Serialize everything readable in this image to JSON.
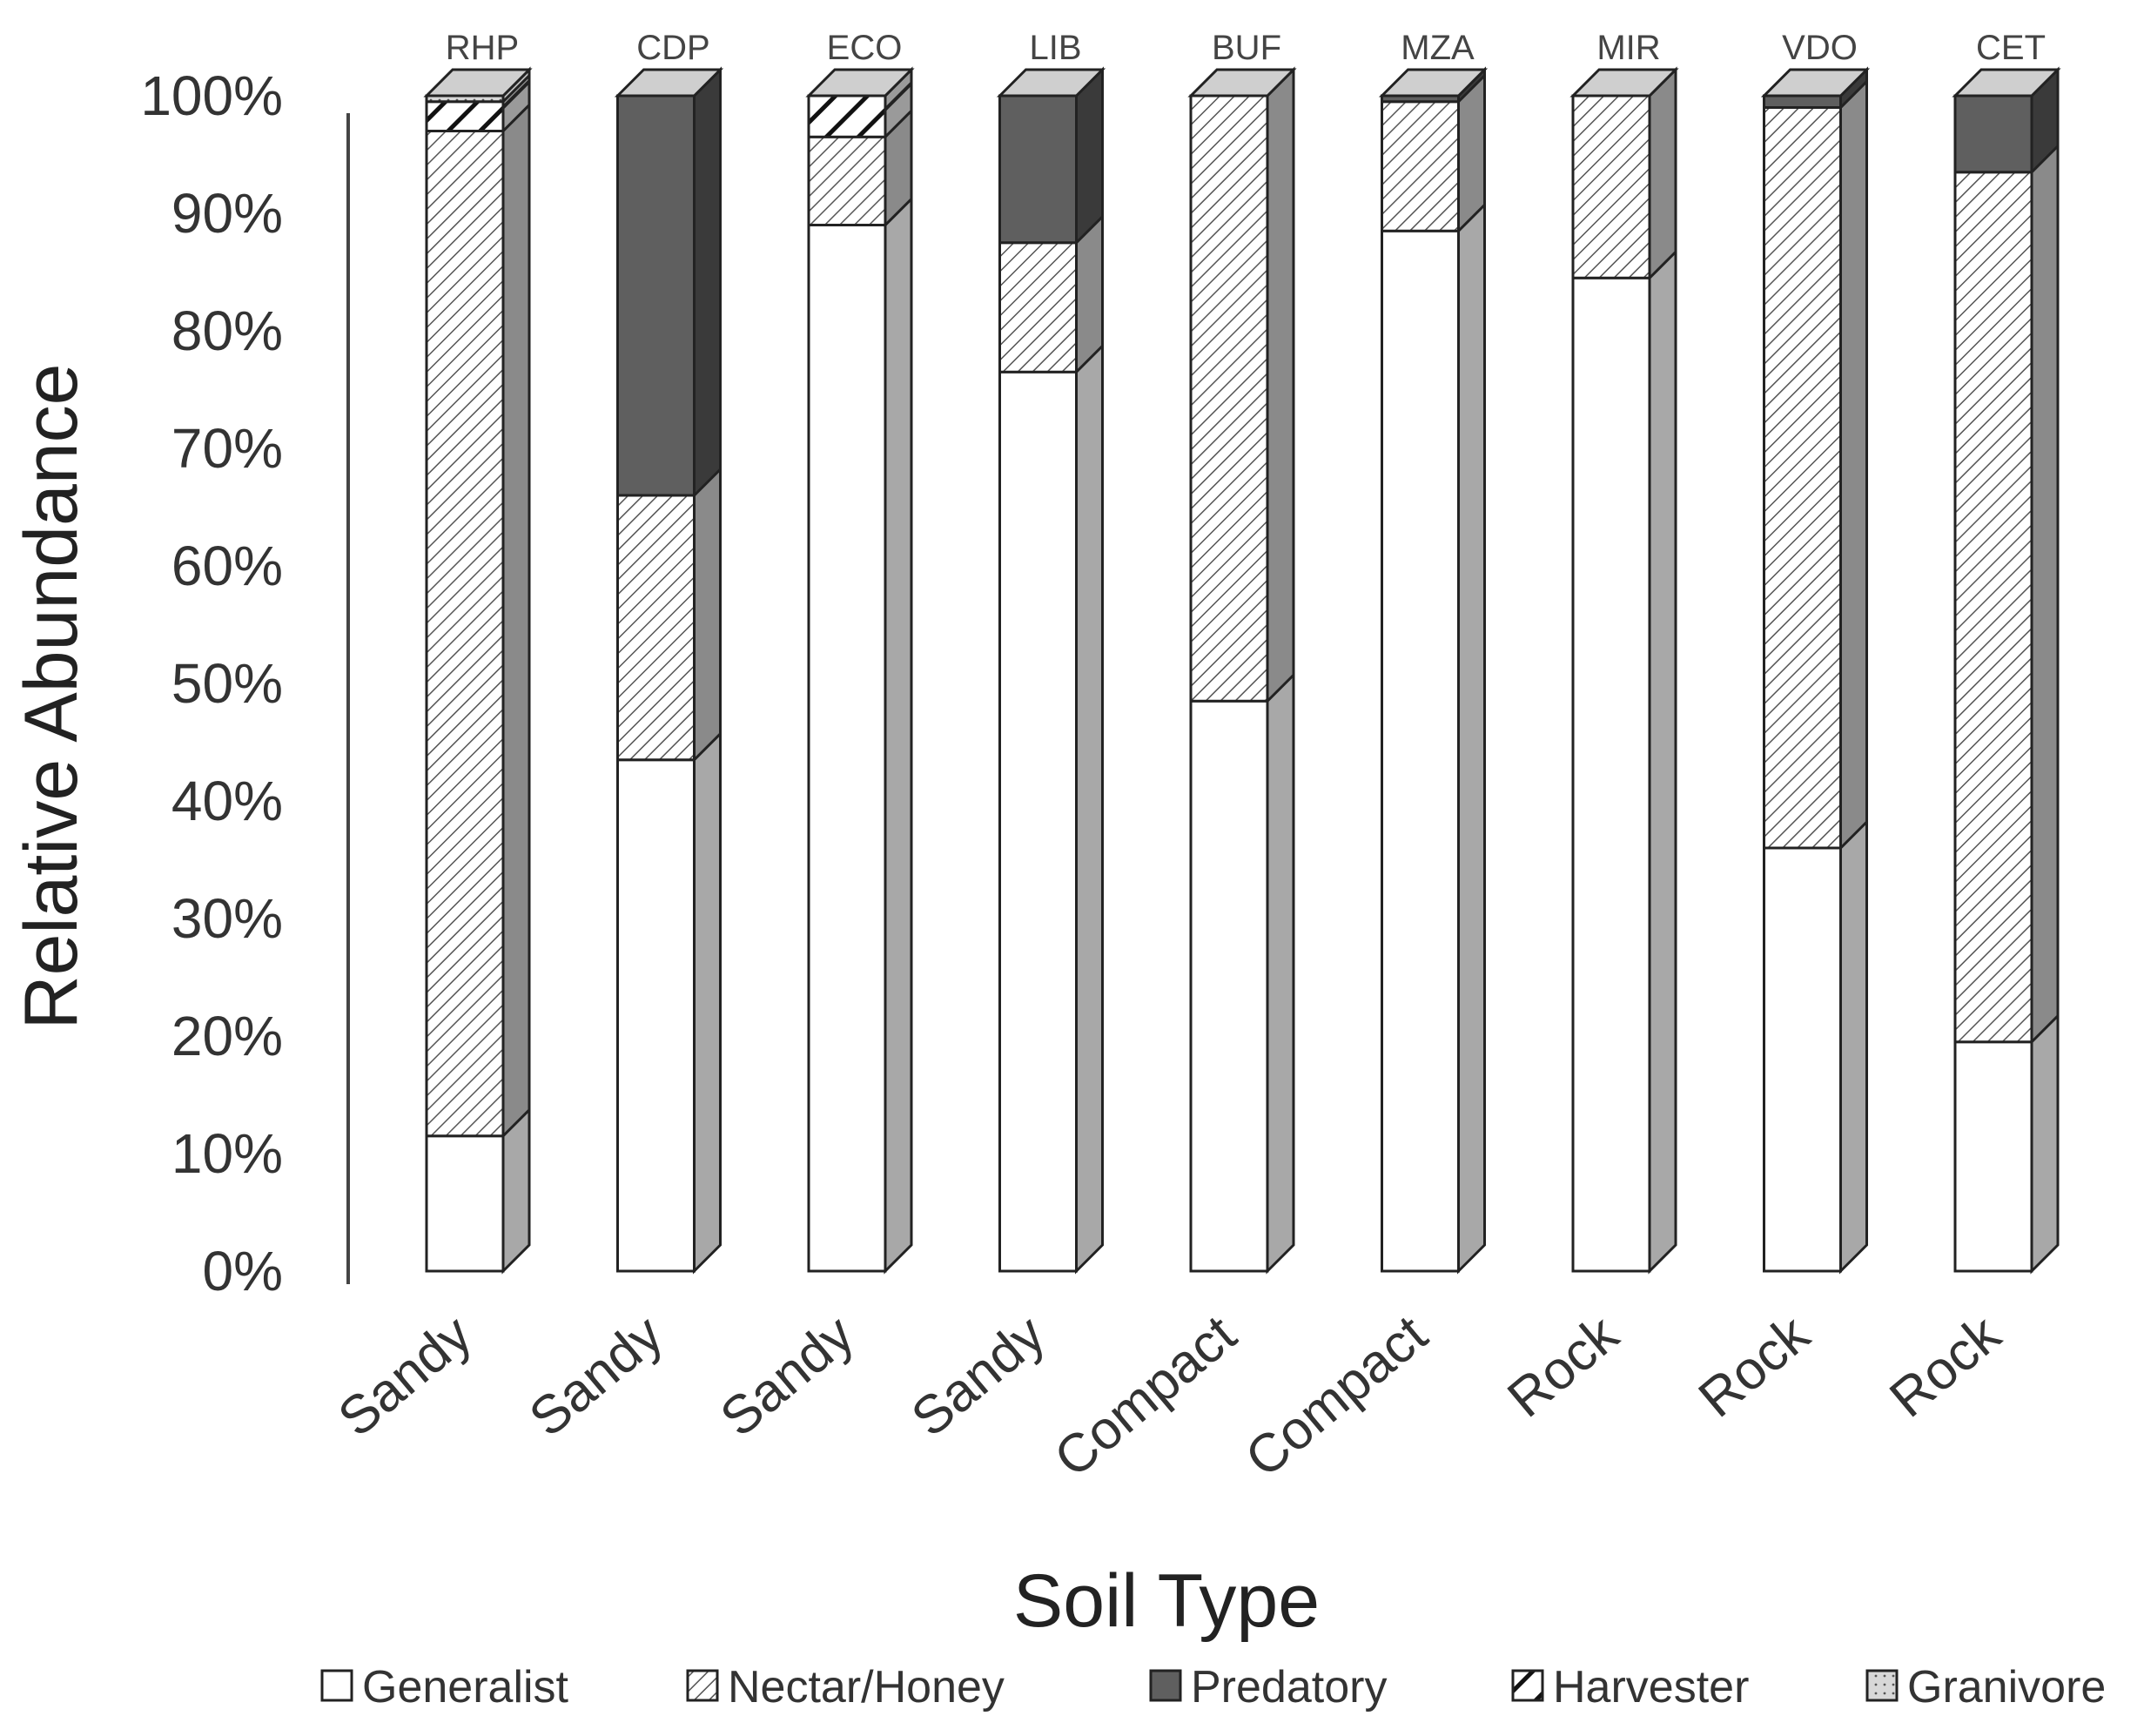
{
  "chart_data": {
    "type": "bar",
    "stacked": true,
    "percent": true,
    "title": "",
    "xlabel": "Soil Type",
    "ylabel": "Relative Abundance",
    "ylim": [
      0,
      100
    ],
    "yticks": [
      "0%",
      "10%",
      "20%",
      "30%",
      "40%",
      "50%",
      "60%",
      "70%",
      "80%",
      "90%",
      "100%"
    ],
    "sites": [
      "RHP",
      "CDP",
      "ECO",
      "LIB",
      "BUF",
      "MZA",
      "MIR",
      "VDO",
      "CET"
    ],
    "categories": [
      "Sandy",
      "Sandy",
      "Sandy",
      "Sandy",
      "Compact",
      "Compact",
      "Rock",
      "Rock",
      "Rock"
    ],
    "series": [
      {
        "name": "Generalist",
        "pattern": "white",
        "values": [
          11.5,
          43.5,
          89,
          76.5,
          48.5,
          88.5,
          84.5,
          36,
          19.5
        ]
      },
      {
        "name": "Nectar/Honey",
        "pattern": "diag-fine",
        "values": [
          85.5,
          22.5,
          7.5,
          11,
          51.5,
          11,
          15.5,
          63,
          74
        ]
      },
      {
        "name": "Predatory",
        "pattern": "dark",
        "values": [
          0,
          34,
          0,
          12.5,
          0,
          0.5,
          0,
          1,
          6.5
        ]
      },
      {
        "name": "Harvester",
        "pattern": "diag-bold",
        "values": [
          2.5,
          0,
          3.5,
          0,
          0,
          0,
          0,
          0,
          0
        ]
      },
      {
        "name": "Granivore",
        "pattern": "dots",
        "values": [
          0.5,
          0,
          0,
          0,
          0,
          0,
          0,
          0,
          0
        ]
      }
    ],
    "legend_position": "bottom"
  }
}
